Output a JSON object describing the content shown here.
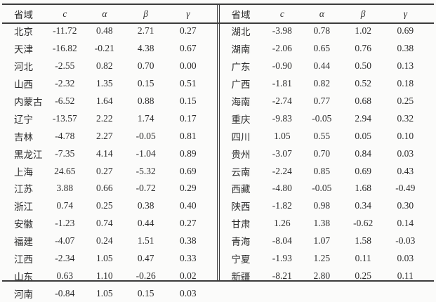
{
  "page": {
    "background": "#fbfbfa",
    "line_color": "#3c3c3c",
    "text_color": "#2d2d2d"
  },
  "table": {
    "headers": [
      "省域",
      "c",
      "α",
      "β",
      "γ"
    ],
    "left_rows": [
      [
        "北京",
        "-11.72",
        "0.48",
        "2.71",
        "0.27"
      ],
      [
        "天津",
        "-16.82",
        "-0.21",
        "4.38",
        "0.67"
      ],
      [
        "河北",
        "-2.55",
        "0.82",
        "0.70",
        "0.00"
      ],
      [
        "山西",
        "-2.32",
        "1.35",
        "0.15",
        "0.51"
      ],
      [
        "内蒙古",
        "-6.52",
        "1.64",
        "0.88",
        "0.15"
      ],
      [
        "辽宁",
        "-13.57",
        "2.22",
        "1.74",
        "0.17"
      ],
      [
        "吉林",
        "-4.78",
        "2.27",
        "-0.05",
        "0.81"
      ],
      [
        "黑龙江",
        "-7.35",
        "4.14",
        "-1.04",
        "0.89"
      ],
      [
        "上海",
        "24.65",
        "0.27",
        "-5.32",
        "0.69"
      ],
      [
        "江苏",
        "3.88",
        "0.66",
        "-0.72",
        "0.29"
      ],
      [
        "浙江",
        "0.74",
        "0.25",
        "0.38",
        "0.40"
      ],
      [
        "安徽",
        "-1.23",
        "0.74",
        "0.44",
        "0.27"
      ],
      [
        "福建",
        "-4.07",
        "0.24",
        "1.51",
        "0.38"
      ],
      [
        "江西",
        "-2.34",
        "1.05",
        "0.47",
        "0.33"
      ],
      [
        "山东",
        "0.63",
        "1.10",
        "-0.26",
        "0.02"
      ],
      [
        "河南",
        "-0.84",
        "1.05",
        "0.15",
        "0.03"
      ]
    ],
    "right_rows": [
      [
        "湖北",
        "-3.98",
        "0.78",
        "1.02",
        "0.69"
      ],
      [
        "湖南",
        "-2.06",
        "0.65",
        "0.76",
        "0.38"
      ],
      [
        "广东",
        "-0.90",
        "0.44",
        "0.50",
        "0.13"
      ],
      [
        "广西",
        "-1.81",
        "0.82",
        "0.52",
        "0.18"
      ],
      [
        "海南",
        "-2.74",
        "0.77",
        "0.68",
        "0.25"
      ],
      [
        "重庆",
        "-9.83",
        "-0.05",
        "2.94",
        "0.32"
      ],
      [
        "四川",
        "1.05",
        "0.55",
        "0.05",
        "0.10"
      ],
      [
        "贵州",
        "-3.07",
        "0.70",
        "0.84",
        "0.03"
      ],
      [
        "云南",
        "-2.24",
        "0.85",
        "0.69",
        "0.43"
      ],
      [
        "西藏",
        "-4.80",
        "-0.05",
        "1.68",
        "-0.49"
      ],
      [
        "陕西",
        "-1.82",
        "0.98",
        "0.34",
        "0.30"
      ],
      [
        "甘肃",
        "1.26",
        "1.38",
        "-0.62",
        "0.14"
      ],
      [
        "青海",
        "-8.04",
        "1.07",
        "1.58",
        "-0.03"
      ],
      [
        "宁夏",
        "-1.93",
        "1.25",
        "0.11",
        "0.03"
      ],
      [
        "新疆",
        "-8.21",
        "2.80",
        "0.25",
        "0.11"
      ]
    ]
  }
}
